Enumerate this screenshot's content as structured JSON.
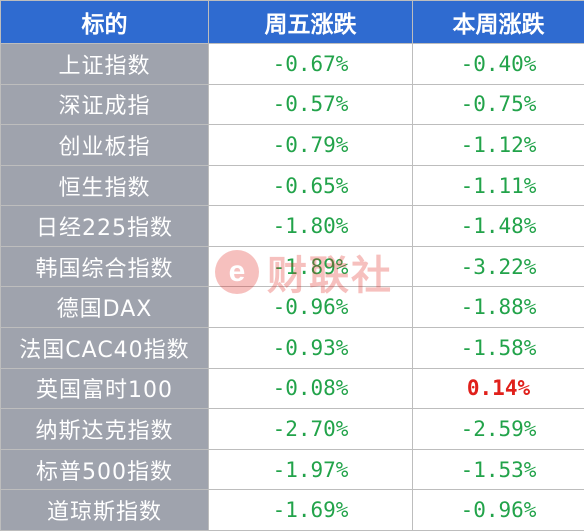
{
  "table": {
    "headers": [
      "标的",
      "周五涨跌",
      "本周涨跌"
    ],
    "rows": [
      {
        "name": "上证指数",
        "friday": "-0.67%",
        "week": "-0.40%"
      },
      {
        "name": "深证成指",
        "friday": "-0.57%",
        "week": "-0.75%"
      },
      {
        "name": "创业板指",
        "friday": "-0.79%",
        "week": "-1.12%"
      },
      {
        "name": "恒生指数",
        "friday": "-0.65%",
        "week": "-1.11%"
      },
      {
        "name": "日经225指数",
        "friday": "-1.80%",
        "week": "-1.48%"
      },
      {
        "name": "韩国综合指数",
        "friday": "-1.89%",
        "week": "-3.22%"
      },
      {
        "name": "德国DAX",
        "friday": "-0.96%",
        "week": "-1.88%"
      },
      {
        "name": "法国CAC40指数",
        "friday": "-0.93%",
        "week": "-1.58%"
      },
      {
        "name": "英国富时100",
        "friday": "-0.08%",
        "week": "0.14%"
      },
      {
        "name": "纳斯达克指数",
        "friday": "-2.70%",
        "week": "-2.59%"
      },
      {
        "name": "标普500指数",
        "friday": "-1.97%",
        "week": "-1.53%"
      },
      {
        "name": "道琼斯指数",
        "friday": "-1.69%",
        "week": "-0.96%"
      }
    ]
  },
  "colors": {
    "header_bg": "#2f6bd0",
    "name_bg": "#9fa3ad",
    "negative": "#22a34a",
    "positive": "#e0201b"
  },
  "watermark": {
    "logo_letter": "e",
    "text": "财联社"
  }
}
